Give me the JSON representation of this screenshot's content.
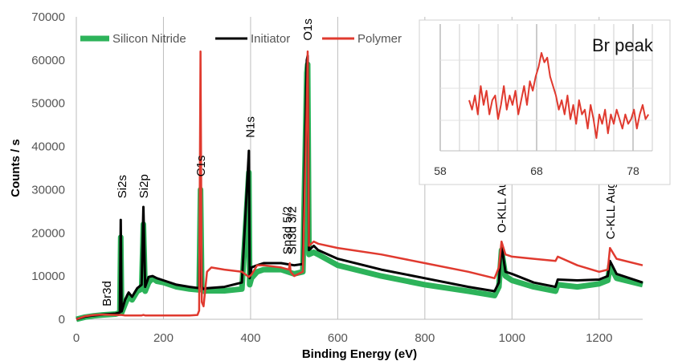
{
  "chart_data": [
    {
      "type": "line",
      "title": "",
      "xlabel": "Binding Energy (eV)",
      "ylabel": "Counts / s",
      "xlim": [
        0,
        1300
      ],
      "ylim": [
        0,
        70000
      ],
      "xticks": [
        "0",
        "200",
        "400",
        "600",
        "800",
        "1000",
        "1200"
      ],
      "yticks": [
        "0",
        "10000",
        "20000",
        "30000",
        "40000",
        "50000",
        "60000",
        "70000"
      ],
      "grid": "vertical",
      "legend_position": "top",
      "colors": {
        "silicon_nitride": "#2db35a",
        "initiator": "#000000",
        "polymer": "#e03a2f"
      },
      "series": [
        {
          "name": "Silicon Nitride",
          "color": "#2db35a",
          "x": [
            0,
            20,
            40,
            60,
            90,
            100,
            102,
            104,
            112,
            120,
            128,
            140,
            150,
            154,
            158,
            166,
            175,
            185,
            200,
            230,
            260,
            282,
            285,
            288,
            292,
            300,
            340,
            380,
            396,
            398,
            402,
            415,
            430,
            470,
            500,
            520,
            529,
            531,
            534,
            545,
            555,
            600,
            700,
            800,
            900,
            960,
            970,
            976,
            985,
            1000,
            1050,
            1100,
            1105,
            1150,
            1200,
            1220,
            1225,
            1240,
            1300
          ],
          "y": [
            0,
            500,
            800,
            1000,
            1200,
            1500,
            19000,
            1500,
            3500,
            5500,
            4500,
            6500,
            7000,
            22000,
            6500,
            8500,
            9500,
            8800,
            8500,
            7500,
            7000,
            6800,
            30000,
            7000,
            6500,
            6600,
            6600,
            7000,
            34000,
            8000,
            9500,
            11000,
            11500,
            11500,
            10500,
            11000,
            57000,
            59000,
            15000,
            15500,
            15000,
            12500,
            10000,
            8000,
            6500,
            5500,
            7500,
            16000,
            10000,
            9000,
            7500,
            6500,
            8000,
            7500,
            8200,
            9000,
            12500,
            9500,
            8000
          ]
        },
        {
          "name": "Initiator",
          "color": "#000000",
          "x": [
            0,
            20,
            40,
            60,
            90,
            100,
            102,
            104,
            112,
            120,
            128,
            140,
            150,
            154,
            158,
            166,
            175,
            185,
            200,
            230,
            260,
            282,
            285,
            288,
            292,
            300,
            340,
            380,
            396,
            398,
            402,
            415,
            430,
            470,
            500,
            520,
            529,
            531,
            534,
            545,
            555,
            600,
            700,
            800,
            900,
            960,
            970,
            976,
            985,
            1000,
            1050,
            1100,
            1105,
            1150,
            1200,
            1220,
            1225,
            1240,
            1300
          ],
          "y": [
            0,
            600,
            900,
            1100,
            1300,
            1600,
            23000,
            1800,
            4500,
            6200,
            5200,
            7200,
            8000,
            26000,
            7500,
            9800,
            10000,
            9500,
            9000,
            8000,
            7500,
            7200,
            30000,
            7500,
            7000,
            7200,
            7500,
            8500,
            39000,
            9500,
            12000,
            12500,
            13000,
            13000,
            12500,
            12800,
            60000,
            61000,
            16000,
            17000,
            16000,
            14000,
            11500,
            9500,
            7500,
            6500,
            8500,
            17000,
            11000,
            10500,
            8500,
            7500,
            9200,
            9000,
            9200,
            10000,
            13500,
            10500,
            8500
          ]
        },
        {
          "name": "Polymer",
          "color": "#e03a2f",
          "x": [
            0,
            20,
            40,
            60,
            90,
            100,
            104,
            112,
            150,
            154,
            158,
            200,
            230,
            260,
            278,
            282,
            285,
            288,
            292,
            300,
            310,
            340,
            380,
            396,
            398,
            402,
            415,
            430,
            470,
            488,
            490,
            492,
            500,
            520,
            529,
            531,
            534,
            545,
            555,
            600,
            700,
            800,
            900,
            960,
            970,
            976,
            985,
            1000,
            1050,
            1100,
            1105,
            1150,
            1200,
            1220,
            1225,
            1240,
            1300
          ],
          "y": [
            0,
            700,
            1000,
            1100,
            1000,
            1000,
            1000,
            900,
            900,
            1000,
            900,
            900,
            900,
            900,
            1000,
            2000,
            62000,
            4000,
            3000,
            11000,
            12000,
            11500,
            11000,
            9800,
            10000,
            10300,
            12500,
            12500,
            12000,
            11500,
            13000,
            11000,
            10000,
            11000,
            50000,
            62000,
            17000,
            18000,
            17500,
            16500,
            15000,
            13000,
            11000,
            9500,
            12000,
            18000,
            15000,
            14500,
            14000,
            13500,
            14500,
            12500,
            11000,
            11500,
            16500,
            14000,
            12500
          ]
        }
      ],
      "annotations": [
        {
          "label": "Br3d",
          "x": 70,
          "y": 3000
        },
        {
          "label": "Si2s",
          "x": 105,
          "y": 28000
        },
        {
          "label": "Si2p",
          "x": 155,
          "y": 28000
        },
        {
          "label": "C1s",
          "x": 286,
          "y": 33000
        },
        {
          "label": "N1s",
          "x": 399,
          "y": 42000
        },
        {
          "label": "Sn3d 3/2",
          "x": 495,
          "y": 15000
        },
        {
          "label": "Sn3d 5/2",
          "x": 484,
          "y": 15000
        },
        {
          "label": "O1s",
          "x": 531,
          "y": 64500
        },
        {
          "label": "O-KLL Auger",
          "x": 976,
          "y": 20000
        },
        {
          "label": "C-KLL Auger",
          "x": 1226,
          "y": 18500
        }
      ]
    },
    {
      "type": "line",
      "title": "Br peak",
      "xlim": [
        58,
        80
      ],
      "xticks": [
        "58",
        "68",
        "78"
      ],
      "grid": "vertical",
      "series": [
        {
          "color": "#e03a2f",
          "x": [
            61.0,
            61.3,
            61.6,
            61.9,
            62.2,
            62.5,
            62.8,
            63.1,
            63.4,
            63.7,
            64.0,
            64.3,
            64.6,
            64.9,
            65.2,
            65.5,
            65.8,
            66.1,
            66.4,
            66.7,
            67.0,
            67.3,
            67.6,
            67.9,
            68.2,
            68.5,
            68.8,
            69.1,
            69.4,
            69.7,
            70.0,
            70.3,
            70.6,
            70.9,
            71.2,
            71.5,
            71.8,
            72.1,
            72.4,
            72.7,
            73.0,
            73.3,
            73.6,
            73.9,
            74.2,
            74.5,
            74.8,
            75.1,
            75.4,
            75.7,
            76.0,
            76.3,
            76.6,
            76.9,
            77.2,
            77.5,
            77.8,
            78.1,
            78.4,
            78.7,
            79.0,
            79.3,
            79.6
          ],
          "y": [
            0.45,
            0.35,
            0.5,
            0.3,
            0.6,
            0.4,
            0.55,
            0.3,
            0.45,
            0.5,
            0.25,
            0.4,
            0.6,
            0.35,
            0.5,
            0.4,
            0.55,
            0.3,
            0.45,
            0.6,
            0.4,
            0.65,
            0.55,
            0.7,
            0.8,
            0.95,
            0.85,
            0.9,
            0.7,
            0.6,
            0.5,
            0.35,
            0.45,
            0.3,
            0.5,
            0.25,
            0.4,
            0.2,
            0.45,
            0.3,
            0.35,
            0.15,
            0.4,
            0.25,
            0.05,
            0.3,
            0.2,
            0.35,
            0.1,
            0.3,
            0.2,
            0.35,
            0.25,
            0.15,
            0.3,
            0.2,
            0.25,
            0.35,
            0.15,
            0.3,
            0.4,
            0.25,
            0.3
          ]
        }
      ]
    }
  ],
  "legend": {
    "entries": [
      {
        "label": "Silicon Nitride",
        "color": "#2db35a"
      },
      {
        "label": "Initiator",
        "color": "#000000"
      },
      {
        "label": "Polymer",
        "color": "#e03a2f"
      }
    ]
  }
}
